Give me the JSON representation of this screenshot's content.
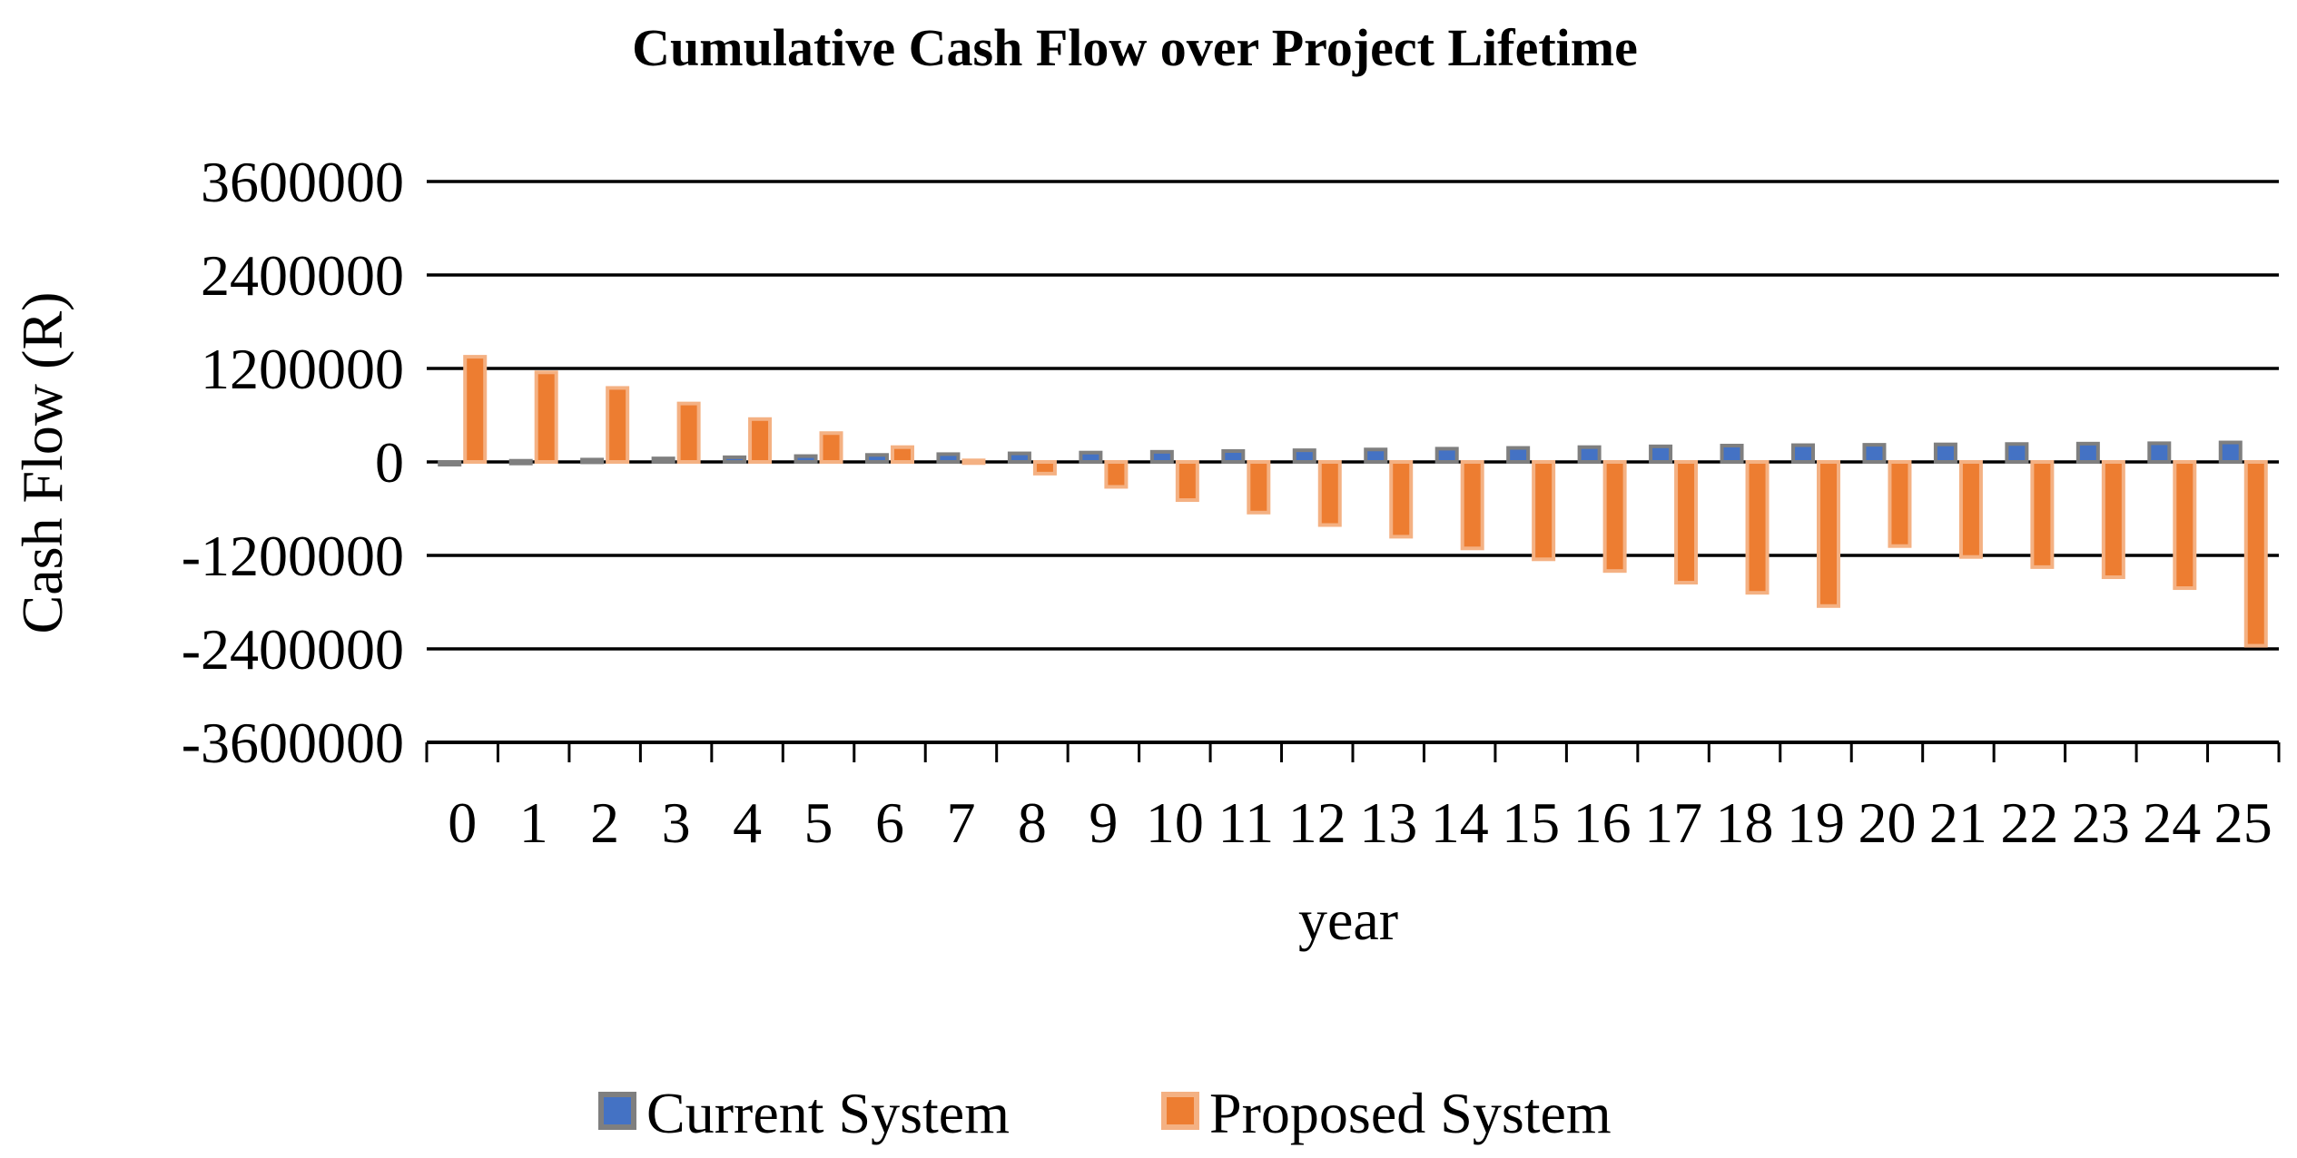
{
  "chart_data": {
    "type": "bar",
    "title": "Cumulative Cash Flow over Project Lifetime",
    "xlabel": "year",
    "ylabel": "Cash Flow (R)",
    "ylim": [
      -3600000,
      3600000
    ],
    "yticks": [
      3600000,
      2400000,
      1200000,
      0,
      -1200000,
      -2400000,
      -3600000
    ],
    "ytick_labels": [
      "3600000",
      "2400000",
      "1200000",
      "0",
      "-1200000",
      "-2400000",
      "-3600000"
    ],
    "categories": [
      "0",
      "1",
      "2",
      "3",
      "4",
      "5",
      "6",
      "7",
      "8",
      "9",
      "10",
      "11",
      "12",
      "13",
      "14",
      "15",
      "16",
      "17",
      "18",
      "19",
      "20",
      "21",
      "22",
      "23",
      "24",
      "25"
    ],
    "grid": true,
    "legend_position": "bottom",
    "series": [
      {
        "name": "Current System",
        "color": "#4472C4",
        "border": "#7F7F7F",
        "values": [
          0,
          15000,
          30000,
          45000,
          60000,
          75000,
          90000,
          100000,
          110000,
          120000,
          130000,
          140000,
          150000,
          160000,
          170000,
          180000,
          190000,
          200000,
          210000,
          215000,
          220000,
          225000,
          230000,
          235000,
          240000,
          250000
        ]
      },
      {
        "name": "Proposed System",
        "color": "#ED7D31",
        "border": "#F4B183",
        "values": [
          1350000,
          1150000,
          950000,
          750000,
          550000,
          370000,
          190000,
          20000,
          -150000,
          -320000,
          -490000,
          -650000,
          -810000,
          -960000,
          -1110000,
          -1250000,
          -1400000,
          -1550000,
          -1680000,
          -1850000,
          -1080000,
          -1220000,
          -1350000,
          -1480000,
          -1620000,
          -2360000
        ]
      }
    ]
  }
}
